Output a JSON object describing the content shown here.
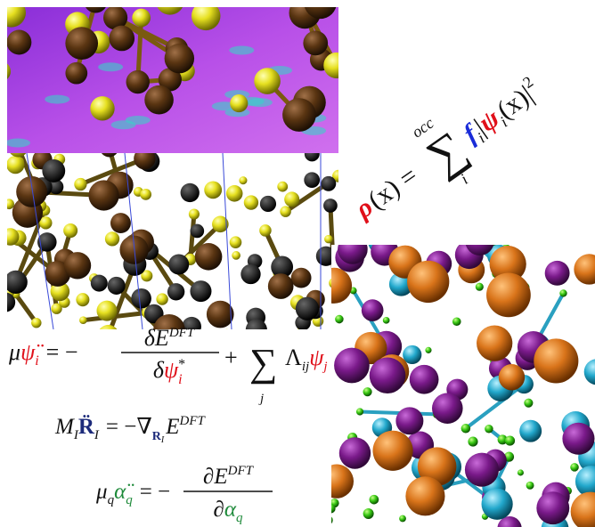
{
  "equations": {
    "density": [
      "ρ",
      "(x) =",
      "∑",
      "occ",
      "i",
      "f",
      "i",
      "|",
      "ψ",
      "i",
      "(x)|",
      "2"
    ],
    "electron": [
      "μ",
      "ψ̈",
      "i",
      "= −",
      "δE",
      "DFT",
      "δ",
      "ψ",
      "*",
      "i",
      "+",
      "∑",
      "j",
      "Λ",
      "ij",
      "ψ",
      "j"
    ],
    "ion": [
      "M",
      "I",
      "R̈",
      "I",
      "= −∇",
      "R",
      "I",
      "E",
      "DFT"
    ],
    "fictitious": [
      "μ",
      "q",
      "α̈",
      "q",
      "= −",
      "∂E",
      "DFT",
      "∂",
      "α",
      "q"
    ]
  }
}
